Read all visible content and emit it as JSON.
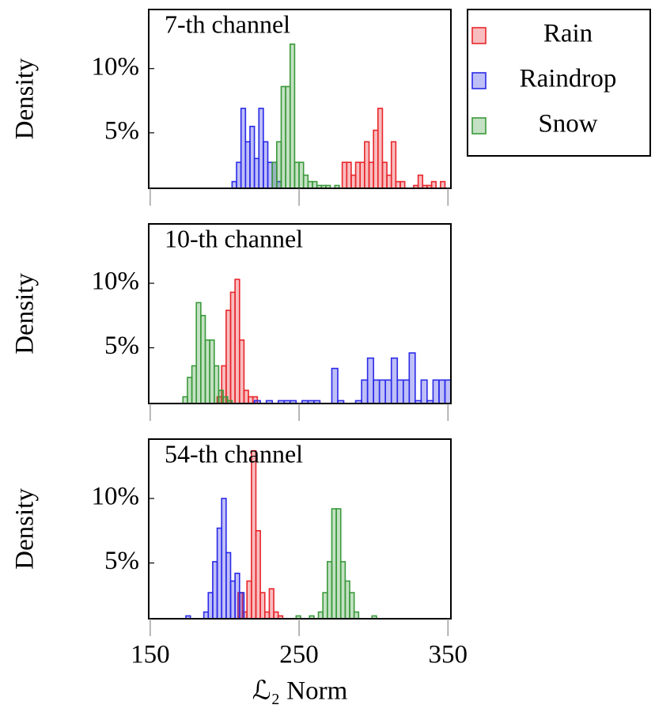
{
  "chart_data": [
    {
      "type": "histogram",
      "title": "7-th channel",
      "ylabel": "Density",
      "xlim": [
        149,
        352
      ],
      "xticks": [
        150,
        250,
        350
      ],
      "ylim": [
        0.68,
        14.6
      ],
      "yticks": [
        {
          "value": 5,
          "label": "5%"
        },
        {
          "value": 10,
          "label": "10%"
        }
      ],
      "series": [
        {
          "name": "Rain",
          "color": "#e8262b",
          "bins": [
            279,
            282,
            285,
            288,
            291,
            294,
            297,
            300,
            303,
            306,
            309,
            312,
            315,
            318,
            321,
            324,
            327,
            330,
            333,
            336,
            339,
            342,
            345,
            348
          ],
          "values": [
            2.7,
            2.7,
            1.7,
            2.7,
            2.7,
            4.3,
            2.7,
            5.2,
            6.9,
            2.7,
            1.7,
            4.3,
            1.2,
            1.2,
            0,
            0,
            0.9,
            1.7,
            0.9,
            0.9,
            1.2,
            0,
            1.2
          ]
        },
        {
          "name": "Raindrop",
          "color": "#2a2ae8",
          "bins": [
            205,
            208,
            211,
            214,
            217,
            220,
            223,
            226,
            229,
            232,
            235,
            238
          ],
          "values": [
            1.2,
            2.7,
            6.9,
            4.3,
            5.5,
            3.0,
            6.9,
            4.3,
            2.7,
            2.7,
            1.2
          ]
        },
        {
          "name": "Snow",
          "color": "#3a9a3a",
          "bins": [
            232,
            235,
            238,
            241,
            244,
            247,
            250,
            253,
            256,
            259,
            262,
            265,
            268,
            271,
            274,
            277
          ],
          "values": [
            2.7,
            4.3,
            8.6,
            8.6,
            11.9,
            2.7,
            2.7,
            1.7,
            1.2,
            1.2,
            0.9,
            0.9,
            0.9,
            0,
            0.9
          ]
        }
      ]
    },
    {
      "type": "histogram",
      "title": "10-th channel",
      "ylabel": "Density",
      "xlim": [
        149,
        352
      ],
      "xticks": [
        150,
        250,
        350
      ],
      "ylim": [
        0.68,
        14.6
      ],
      "yticks": [
        {
          "value": 5,
          "label": "5%"
        },
        {
          "value": 10,
          "label": "10%"
        }
      ],
      "series": [
        {
          "color": "#e8262b",
          "bins": [
            195,
            198,
            201,
            204,
            207,
            210,
            213,
            216,
            219,
            222
          ],
          "values": [
            1.2,
            3.6,
            7.9,
            9.3,
            10.3,
            5.6,
            1.7,
            1.2,
            1.2
          ]
        },
        {
          "color": "#2a2ae8",
          "bins": [
            220,
            224,
            228,
            232,
            236,
            240,
            244,
            248,
            252,
            256,
            260,
            264,
            268,
            272,
            276,
            280,
            284,
            288,
            292,
            296,
            300,
            304,
            308,
            312,
            316,
            320,
            324,
            328,
            332,
            336,
            340,
            344,
            348,
            352
          ],
          "values": [
            0.9,
            0,
            0.9,
            0,
            0.9,
            0.9,
            0.9,
            0,
            0.9,
            0.9,
            0.9,
            0,
            0,
            3.4,
            0.9,
            0,
            0,
            0.9,
            2.5,
            4.2,
            2.5,
            2.5,
            2.5,
            4.2,
            2.5,
            2.5,
            4.6,
            0.9,
            2.5,
            0.9,
            2.5,
            2.5,
            2.5
          ]
        },
        {
          "color": "#3a9a3a",
          "bins": [
            172,
            175,
            178,
            181,
            184,
            187,
            190,
            193,
            196,
            199,
            202,
            205
          ],
          "values": [
            1.2,
            2.7,
            3.6,
            8.5,
            7.5,
            5.6,
            5.6,
            3.6,
            1.7,
            1.2,
            0.9
          ]
        }
      ]
    },
    {
      "type": "histogram",
      "title": "54-th channel",
      "ylabel": "Density",
      "xlabel": "ℒ₂ Norm",
      "xlim": [
        149,
        352
      ],
      "xticks": [
        150,
        250,
        350
      ],
      "ylim": [
        0.68,
        14.6
      ],
      "yticks": [
        {
          "value": 5,
          "label": "5%"
        },
        {
          "value": 10,
          "label": "10%"
        }
      ],
      "series": [
        {
          "color": "#e8262b",
          "bins": [
            209,
            212,
            215,
            218,
            221,
            224,
            227,
            230,
            233,
            236,
            239
          ],
          "values": [
            2.7,
            1.2,
            3.6,
            13.7,
            7.5,
            2.7,
            1.2,
            3.0,
            1.2,
            0.9
          ]
        },
        {
          "color": "#2a2ae8",
          "bins": [
            174,
            177,
            180,
            183,
            186,
            189,
            192,
            195,
            198,
            201,
            204,
            207,
            210,
            213
          ],
          "values": [
            0.9,
            0,
            0,
            0,
            1.2,
            2.7,
            5.1,
            7.7,
            10,
            5.8,
            3.6,
            4.2,
            2.7
          ]
        },
        {
          "color": "#3a9a3a",
          "bins": [
            248,
            251,
            254,
            257,
            260,
            263,
            266,
            269,
            272,
            275,
            278,
            281,
            284,
            287,
            290,
            293,
            296,
            299,
            302,
            305,
            308
          ],
          "values": [
            0.9,
            0,
            0,
            0.9,
            0,
            1.2,
            2.7,
            5.1,
            9.2,
            9.2,
            5.1,
            3.6,
            2.7,
            1.2,
            0,
            0,
            0,
            0.9,
            0,
            0
          ]
        }
      ]
    }
  ]
}
